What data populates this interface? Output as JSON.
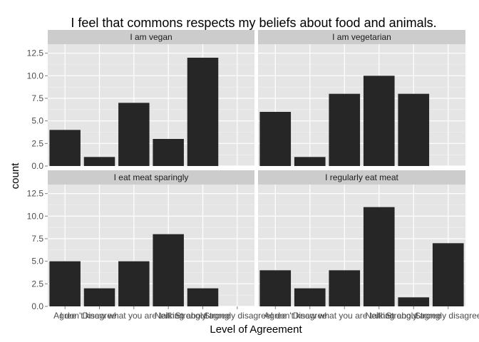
{
  "chart_data": {
    "type": "bar",
    "title": "I feel that commons respects my beliefs about food and animals.",
    "xlabel": "Level of Agreement",
    "ylabel": "count",
    "ylim": [
      0,
      13.5
    ],
    "yticks": [
      "0.0",
      "2.5",
      "5.0",
      "7.5",
      "10.0",
      "12.5"
    ],
    "ytick_values": [
      0,
      2.5,
      5,
      7.5,
      10,
      12.5
    ],
    "categories": [
      "Agree",
      "Disagree",
      "I don't know what you are talking about",
      "Neither",
      "Strongly agree",
      "Strongly disagree"
    ],
    "bar_color": "#262626",
    "panel_bg": "#e5e5e5",
    "strip_bg": "#cccccc",
    "facets": [
      {
        "name": "I am vegan",
        "values": [
          4,
          1,
          7,
          3,
          12,
          0
        ]
      },
      {
        "name": "I am vegetarian",
        "values": [
          6,
          1,
          8,
          10,
          8,
          0
        ]
      },
      {
        "name": "I eat meat sparingly",
        "values": [
          5,
          2,
          5,
          8,
          2,
          0
        ]
      },
      {
        "name": "I regularly eat meat",
        "values": [
          4,
          2,
          4,
          11,
          1,
          7
        ]
      }
    ]
  }
}
